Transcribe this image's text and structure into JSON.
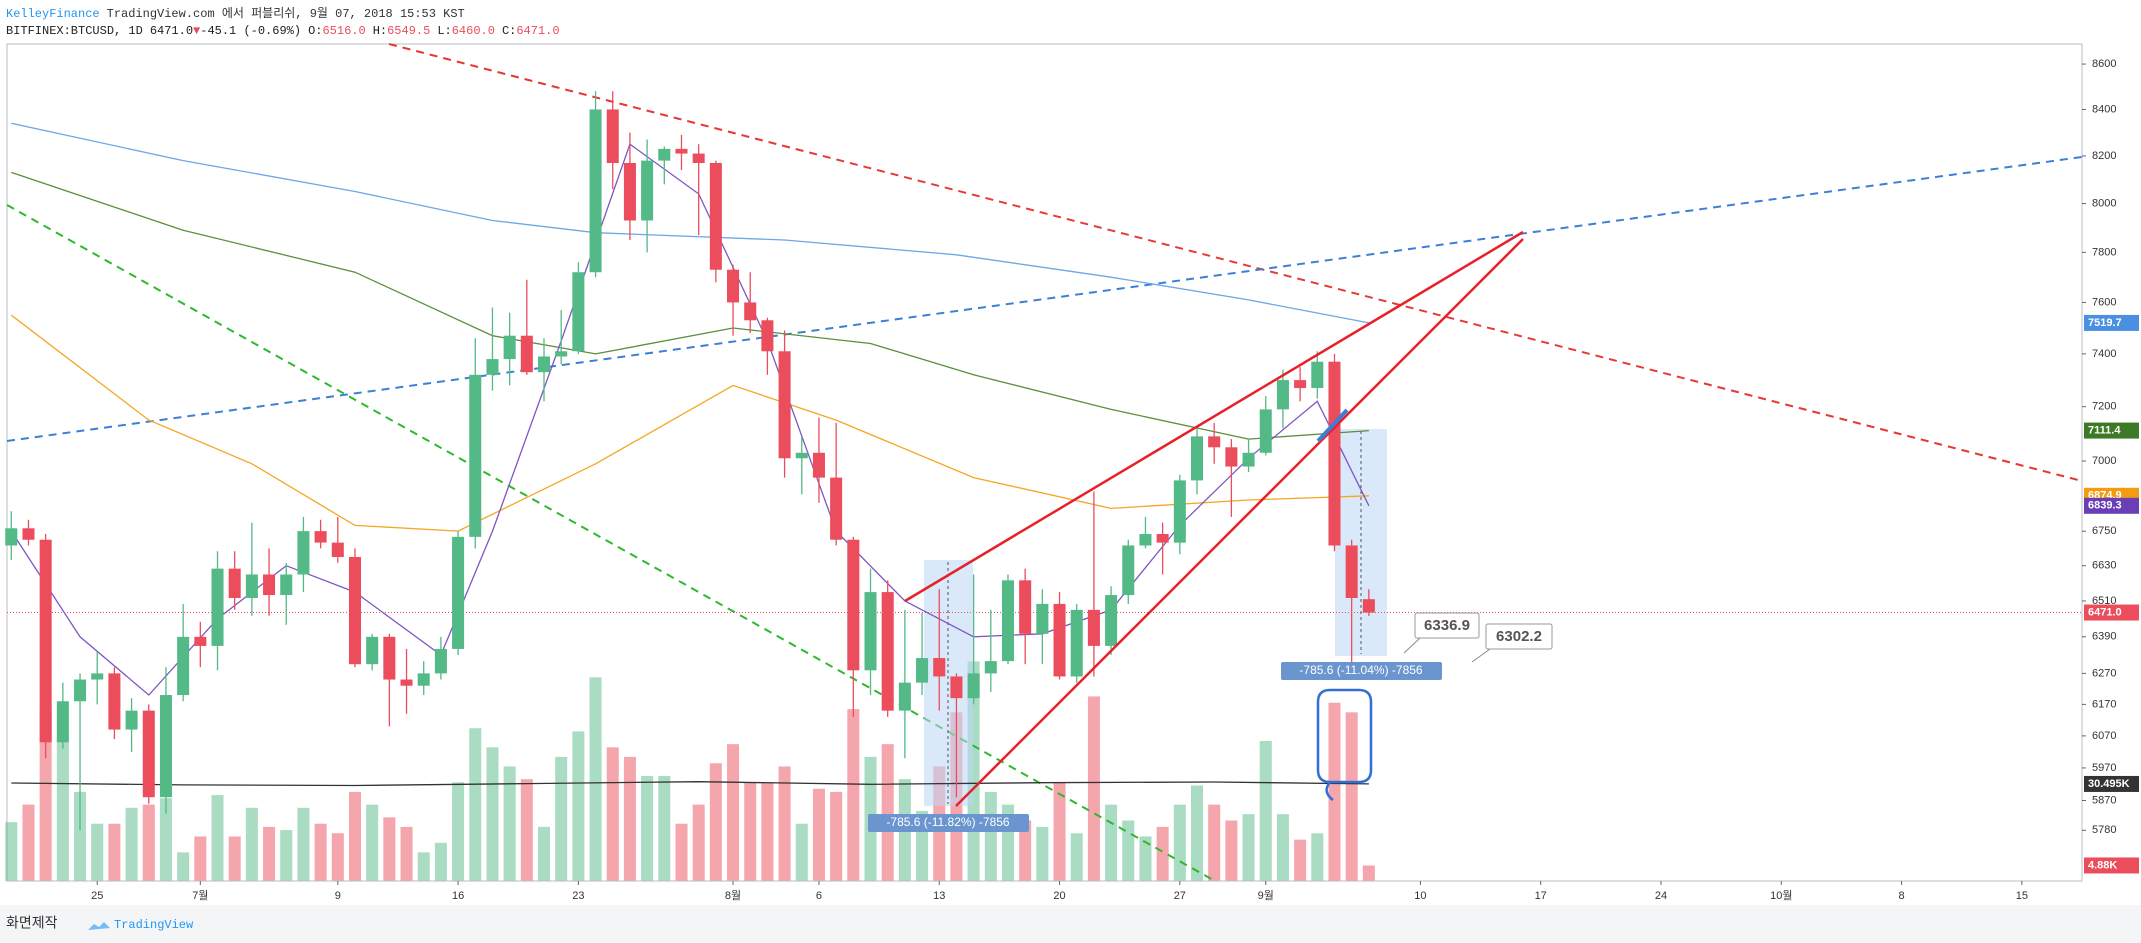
{
  "header": {
    "publisher": "KelleyFinance",
    "published": "TradingView.com 에서 퍼블리쉬, 9월 07, 2018 15:53 KST",
    "symbol": "BITFINEX:BTCUSD, 1D",
    "last": "6471.0",
    "arrow": "▼",
    "change": "-45.1 (-0.69%)",
    "ohlc": [
      {
        "label": "O:",
        "value": "6516.0"
      },
      {
        "label": "H:",
        "value": "6549.5"
      },
      {
        "label": "L:",
        "value": "6460.0"
      },
      {
        "label": "C:",
        "value": "6471.0"
      }
    ]
  },
  "footer": {
    "left": "화면제작",
    "brand": "TradingView"
  },
  "chart_data": {
    "type": "candlestick",
    "log_scale": true,
    "grid": false,
    "up_color": "#53b987",
    "down_color": "#eb4d5c",
    "xlim": [
      -0.25,
      120.5
    ],
    "xticks": [
      {
        "value": 5,
        "label": "25"
      },
      {
        "value": 11,
        "label": "7월"
      },
      {
        "value": 19,
        "label": "9"
      },
      {
        "value": 26,
        "label": "16"
      },
      {
        "value": 33,
        "label": "23"
      },
      {
        "value": 42,
        "label": "8월"
      },
      {
        "value": 47,
        "label": "6"
      },
      {
        "value": 54,
        "label": "13"
      },
      {
        "value": 61,
        "label": "20"
      },
      {
        "value": 68,
        "label": "27"
      },
      {
        "value": 73,
        "label": "9월"
      },
      {
        "value": 82,
        "label": "10"
      },
      {
        "value": 89,
        "label": "17"
      },
      {
        "value": 96,
        "label": "24"
      },
      {
        "value": 103,
        "label": "10월"
      },
      {
        "value": 110,
        "label": "8"
      },
      {
        "value": 117,
        "label": "15"
      }
    ],
    "ylim": [
      5630,
      8690
    ],
    "yticks": [
      8600,
      8400,
      8200,
      8000,
      7800,
      7600,
      7400,
      7200,
      7000,
      6750,
      6630,
      6510,
      6390,
      6270,
      6170,
      6070,
      5970,
      5870,
      5780
    ],
    "open": [
      6700,
      6760,
      6720,
      6050,
      6180,
      6250,
      6270,
      6090,
      6150,
      5880,
      6200,
      6390,
      6360,
      6620,
      6520,
      6600,
      6530,
      6600,
      6750,
      6710,
      6660,
      6300,
      6390,
      6250,
      6230,
      6270,
      6350,
      6730,
      7320,
      7380,
      7470,
      7330,
      7390,
      7410,
      7720,
      8400,
      8170,
      7930,
      8180,
      8230,
      8210,
      8170,
      7730,
      7600,
      7530,
      7410,
      7010,
      7030,
      6940,
      6720,
      6280,
      6540,
      6150,
      6240,
      6320,
      6260,
      6190,
      6270,
      6310,
      6580,
      6400,
      6500,
      6260,
      6480,
      6360,
      6530,
      6700,
      6740,
      6710,
      6930,
      7090,
      7050,
      6980,
      7030,
      7190,
      7300,
      7270,
      7370,
      6700,
      6516
    ],
    "high": [
      6820,
      6790,
      6740,
      6240,
      6270,
      6340,
      6290,
      6190,
      6170,
      6290,
      6500,
      6440,
      6680,
      6680,
      6780,
      6690,
      6640,
      6800,
      6790,
      6800,
      6690,
      6400,
      6400,
      6350,
      6310,
      6390,
      6750,
      7460,
      7580,
      7560,
      7690,
      7460,
      7570,
      7760,
      8480,
      8480,
      8300,
      8270,
      8240,
      8290,
      8250,
      8180,
      7750,
      7720,
      7540,
      7490,
      7090,
      7160,
      7140,
      6730,
      6620,
      6580,
      6480,
      6470,
      6550,
      6270,
      6600,
      6480,
      6600,
      6620,
      6550,
      6540,
      6500,
      6890,
      6560,
      6720,
      6800,
      6780,
      6950,
      7120,
      7140,
      7080,
      7080,
      7240,
      7340,
      7350,
      7410,
      7400,
      6720,
      6549.5
    ],
    "low": [
      6650,
      6700,
      6000,
      6030,
      5780,
      6170,
      6060,
      6020,
      5860,
      5830,
      6180,
      6290,
      6280,
      6480,
      6460,
      6460,
      6430,
      6540,
      6690,
      6640,
      6290,
      6280,
      6100,
      6140,
      6200,
      6250,
      6330,
      6690,
      7260,
      7280,
      7320,
      7220,
      7360,
      7400,
      7700,
      8060,
      7850,
      7800,
      8080,
      8140,
      7870,
      7680,
      7470,
      7480,
      7320,
      6940,
      6880,
      6850,
      6700,
      6130,
      6200,
      6130,
      6000,
      6200,
      6150,
      5880,
      6170,
      6210,
      6300,
      6300,
      6300,
      6250,
      6240,
      6260,
      6330,
      6500,
      6690,
      6600,
      6670,
      6880,
      6990,
      6800,
      6960,
      7020,
      7120,
      7220,
      7230,
      6680,
      6300,
      6460
    ],
    "close": [
      6760,
      6720,
      6050,
      6180,
      6250,
      6270,
      6090,
      6150,
      5880,
      6200,
      6390,
      6360,
      6620,
      6520,
      6600,
      6530,
      6600,
      6750,
      6710,
      6660,
      6300,
      6390,
      6250,
      6230,
      6270,
      6350,
      6730,
      7320,
      7380,
      7470,
      7330,
      7390,
      7410,
      7720,
      8400,
      8170,
      7930,
      8180,
      8230,
      8210,
      8170,
      7730,
      7600,
      7530,
      7410,
      7010,
      7030,
      6940,
      6720,
      6280,
      6540,
      6150,
      6240,
      6320,
      6260,
      6190,
      6270,
      6310,
      6580,
      6400,
      6500,
      6260,
      6480,
      6360,
      6530,
      6700,
      6740,
      6710,
      6930,
      7090,
      7050,
      6980,
      7030,
      7190,
      7300,
      7270,
      7370,
      6700,
      6520,
      6471
    ],
    "last_price_label": "6471.0",
    "volume": [
      18.5,
      24,
      55,
      45,
      28,
      18,
      18,
      23,
      24,
      26,
      9,
      14,
      27,
      14,
      23,
      17,
      16,
      23,
      18,
      15,
      28,
      24,
      20,
      17,
      9,
      12,
      31,
      48,
      42,
      36,
      32,
      17,
      39,
      47,
      64,
      42,
      39,
      33,
      33,
      18,
      24,
      37,
      43,
      31,
      31,
      36,
      18,
      29,
      28,
      54,
      39,
      43,
      32,
      22,
      36,
      53,
      69,
      28,
      24,
      19,
      17,
      31,
      15,
      58,
      24,
      19,
      14,
      17,
      24,
      30,
      24,
      19,
      21,
      44,
      21,
      13,
      15,
      56,
      53,
      4.88
    ],
    "volume_ylim": [
      0,
      263
    ],
    "volume_last_label": "4.88K",
    "ma": [
      {
        "color": "#6ea6e6",
        "badge": "#4a90e2",
        "x": [
          0,
          10,
          20,
          28,
          34,
          45,
          55,
          64,
          72,
          79
        ],
        "values": [
          8340,
          8180,
          8050,
          7930,
          7880,
          7850,
          7790,
          7700,
          7610,
          7519.7
        ],
        "last_label": "7519.7"
      },
      {
        "color": "#5a8f3e",
        "badge": "#3d7a28",
        "x": [
          0,
          10,
          20,
          28,
          34,
          42,
          50,
          56,
          64,
          72,
          79
        ],
        "values": [
          8130,
          7890,
          7720,
          7470,
          7400,
          7500,
          7440,
          7320,
          7190,
          7080,
          7111.4
        ],
        "last_label": "7111.4"
      },
      {
        "color": "#f5a623",
        "badge": "#f39c12",
        "x": [
          0,
          8,
          14,
          20,
          26,
          34,
          42,
          48,
          56,
          64,
          72,
          79
        ],
        "values": [
          7550,
          7150,
          6990,
          6770,
          6750,
          6990,
          7280,
          7150,
          6940,
          6830,
          6860,
          6874.9
        ],
        "last_label": "6874.9"
      },
      {
        "color": "#7e57c2",
        "badge": "#6a3fb5",
        "x": [
          0,
          4,
          8,
          12,
          16,
          20,
          25,
          28,
          32,
          36,
          40,
          44,
          48,
          52,
          56,
          60,
          64,
          68,
          72,
          76,
          79
        ],
        "values": [
          6750,
          6390,
          6200,
          6450,
          6630,
          6540,
          6330,
          6750,
          7450,
          8250,
          8040,
          7450,
          6750,
          6510,
          6390,
          6400,
          6480,
          6770,
          7010,
          7220,
          6839.3
        ],
        "last_label": "6839.3"
      }
    ],
    "volume_ma": {
      "color": "#333333",
      "x": [
        0,
        10,
        20,
        30,
        40,
        50,
        60,
        70,
        79
      ],
      "values": [
        30.8,
        30.2,
        30.0,
        30.6,
        31.2,
        30.4,
        30.9,
        31.1,
        30.495
      ],
      "last_label": "30.495K"
    },
    "annotations": [
      "-785.6 (-11.82%) -7856",
      "-785.6 (-11.04%) -7856",
      "6336.9",
      "6302.2"
    ]
  }
}
